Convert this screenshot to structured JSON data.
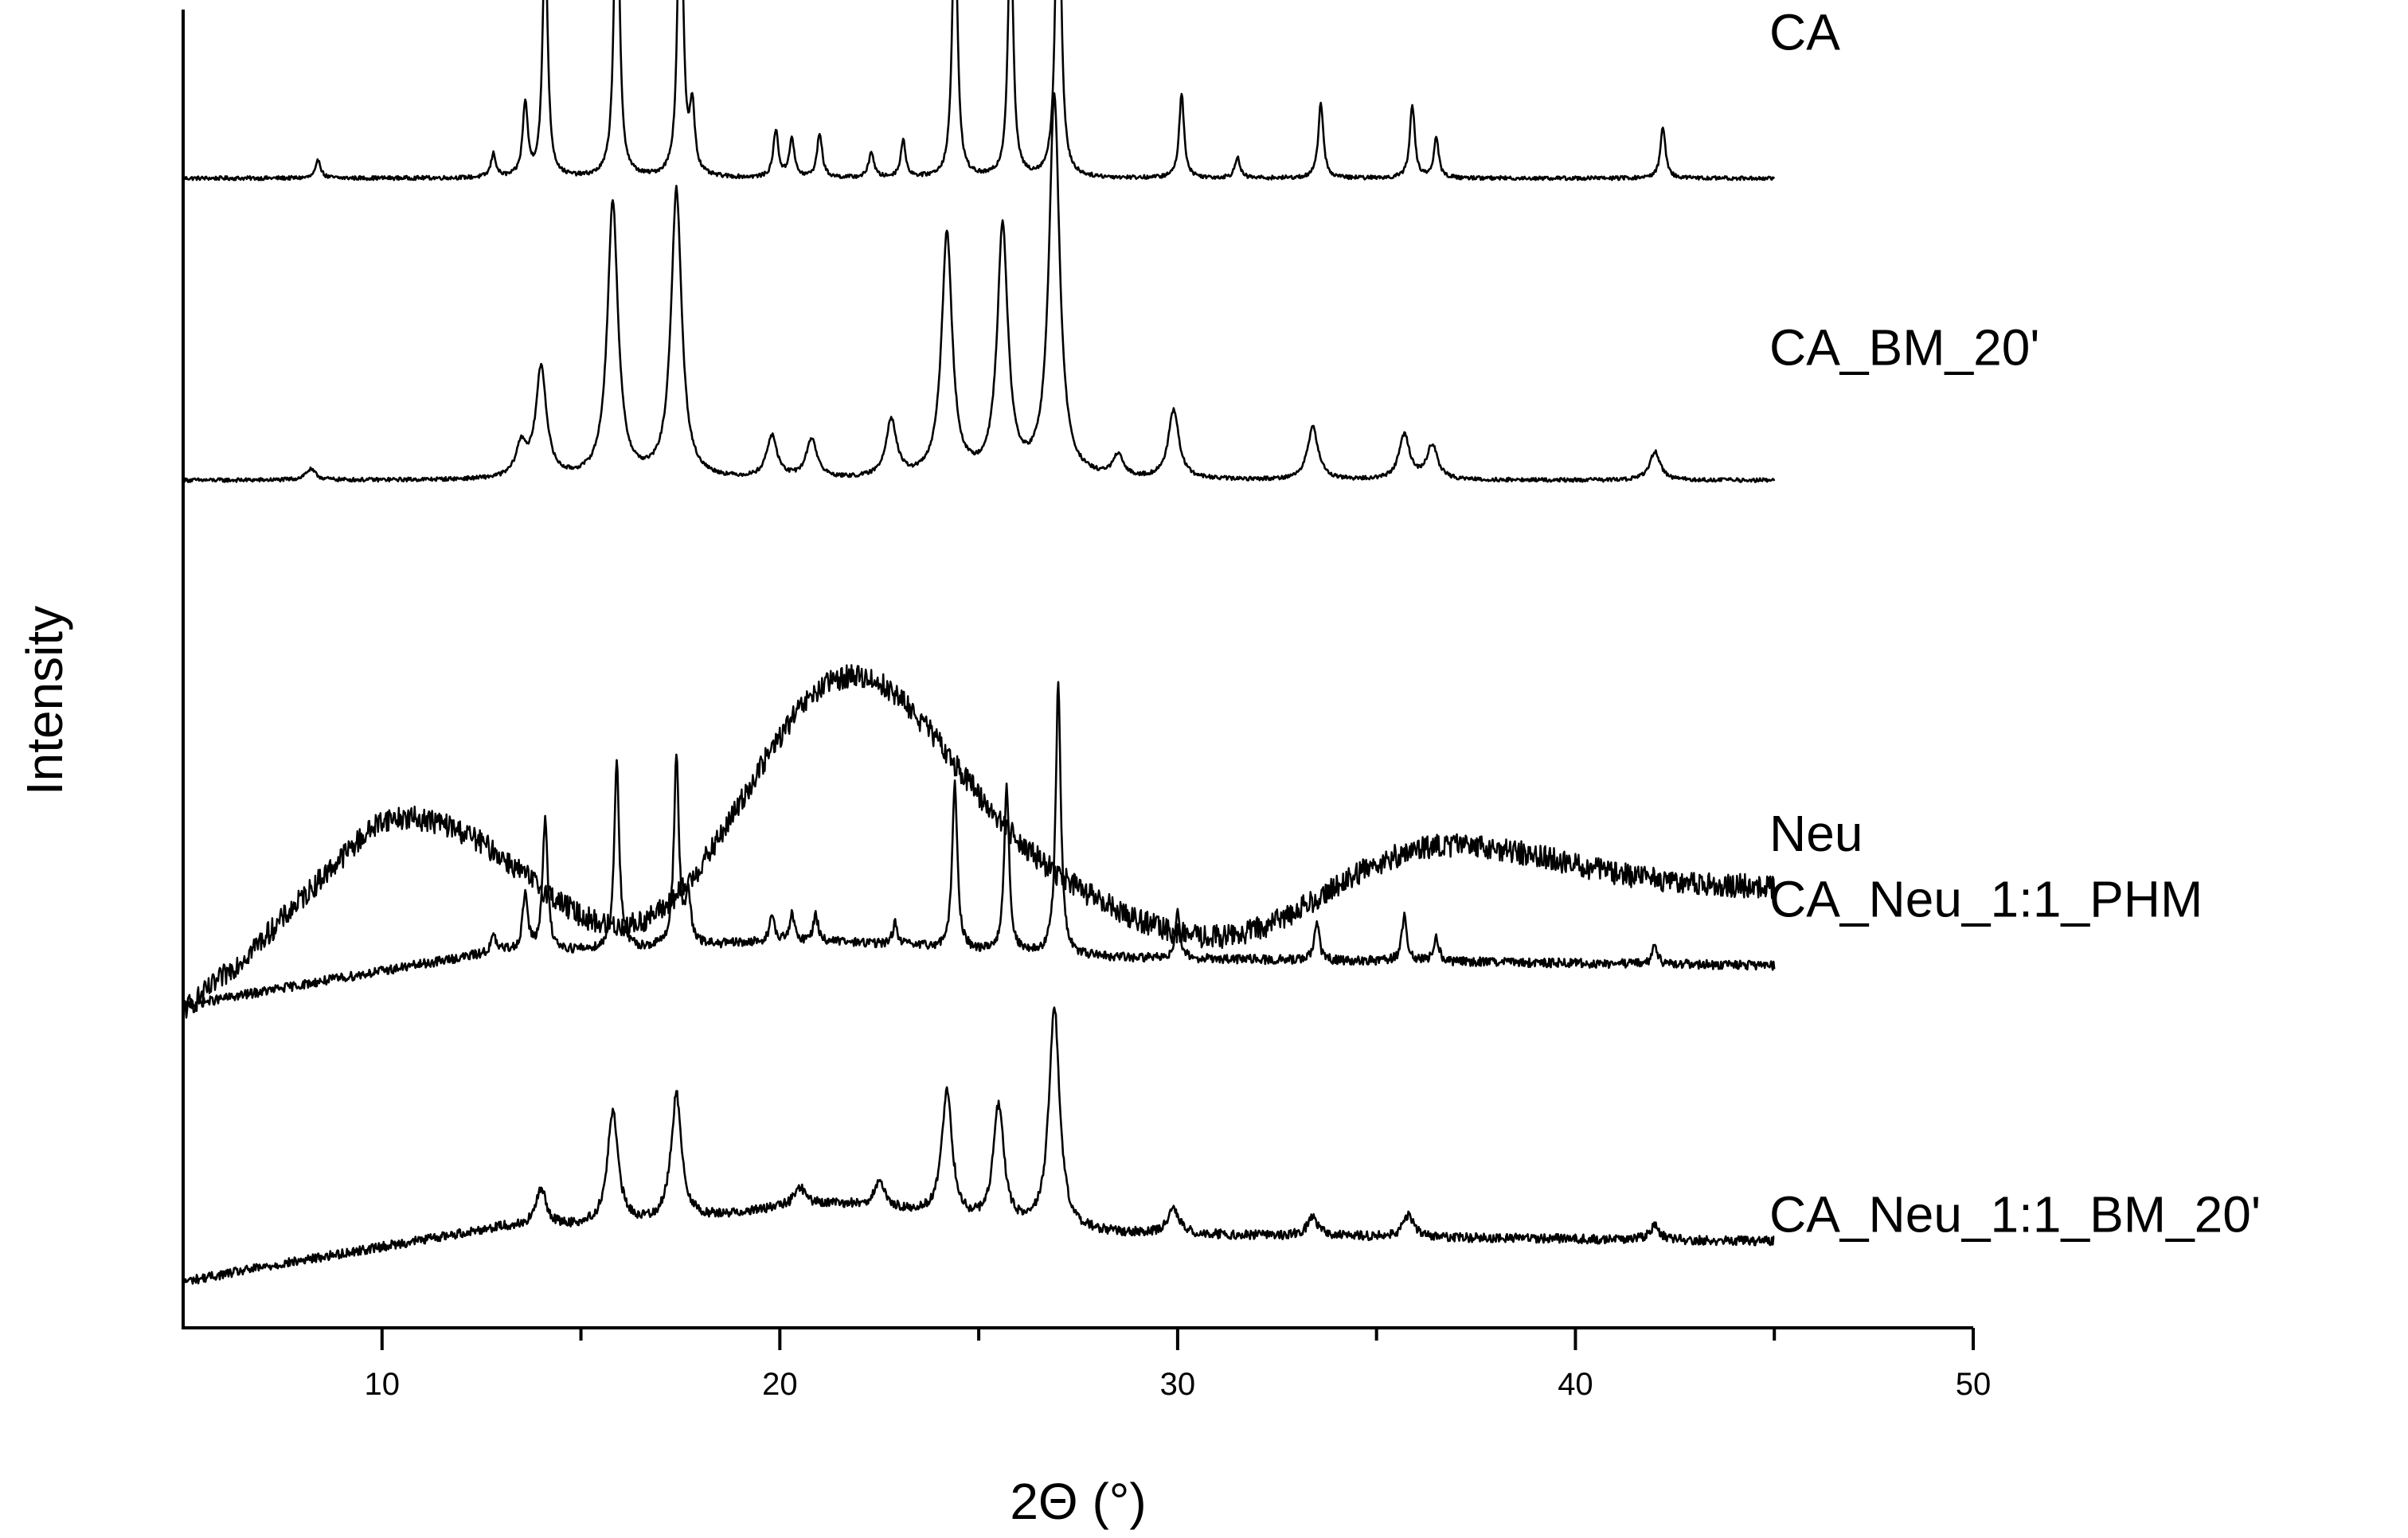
{
  "chart_data": {
    "type": "line",
    "title": "",
    "xlabel": "2Θ (°)",
    "ylabel": "Intensity",
    "xlim": [
      5,
      50
    ],
    "x_ticks": [
      10,
      20,
      30,
      40,
      50
    ],
    "y_ticks_shown": false,
    "grid": false,
    "legend": "none (series labelled inline at right)",
    "x_range_of_data": [
      5,
      45
    ],
    "stacked_offset": true,
    "series": [
      {
        "name": "CA",
        "baseline_offset": 4.2,
        "peaks_2theta": [
          8.4,
          12.8,
          13.6,
          14.1,
          15.9,
          17.5,
          17.8,
          19.9,
          20.3,
          21.0,
          22.3,
          23.1,
          24.4,
          25.8,
          27.0,
          30.1,
          31.5,
          33.6,
          35.9,
          36.5,
          42.2
        ],
        "peak_heights": [
          0.07,
          0.09,
          0.28,
          0.95,
          1.33,
          1.3,
          0.25,
          0.18,
          0.15,
          0.17,
          0.1,
          0.14,
          1.09,
          1.02,
          1.46,
          0.32,
          0.08,
          0.29,
          0.28,
          0.15,
          0.2
        ]
      },
      {
        "name": "CA_BM_20'",
        "baseline_offset": 3.05,
        "peaks_2theta": [
          8.2,
          13.5,
          14.0,
          15.8,
          17.4,
          19.8,
          20.8,
          22.8,
          24.2,
          25.6,
          26.9,
          28.5,
          29.9,
          33.4,
          35.7,
          36.4,
          42.0
        ],
        "peak_heights": [
          0.04,
          0.12,
          0.42,
          1.05,
          1.1,
          0.16,
          0.15,
          0.22,
          0.93,
          0.95,
          1.45,
          0.08,
          0.26,
          0.2,
          0.17,
          0.13,
          0.11
        ]
      },
      {
        "name": "Neu",
        "baseline_offset": 0.9,
        "amorphous": true,
        "humps_2theta": [
          11.5,
          20.5,
          22.5,
          36.0
        ],
        "hump_heights": [
          0.6,
          0.85,
          0.9,
          0.35
        ]
      },
      {
        "name": "CA_Neu_1:1_PHM",
        "baseline_offset": 1.05,
        "peaks_2theta": [
          12.8,
          13.6,
          14.1,
          15.9,
          17.4,
          17.7,
          19.8,
          20.3,
          20.9,
          22.9,
          24.4,
          25.7,
          27.0,
          30.0,
          33.5,
          35.7,
          36.5,
          42.0
        ],
        "peak_heights": [
          0.06,
          0.22,
          0.5,
          0.72,
          0.73,
          0.18,
          0.1,
          0.1,
          0.1,
          0.08,
          0.64,
          0.64,
          1.05,
          0.18,
          0.14,
          0.18,
          0.1,
          0.08
        ]
      },
      {
        "name": "CA_Neu_1:1_BM_20'",
        "baseline_offset": 0.0,
        "peaks_2theta": [
          14.0,
          15.8,
          17.4,
          20.5,
          22.5,
          24.2,
          25.5,
          26.9,
          29.9,
          33.4,
          35.8,
          42.0
        ],
        "peak_heights": [
          0.14,
          0.43,
          0.48,
          0.07,
          0.09,
          0.48,
          0.45,
          0.85,
          0.1,
          0.07,
          0.08,
          0.05
        ]
      }
    ]
  }
}
